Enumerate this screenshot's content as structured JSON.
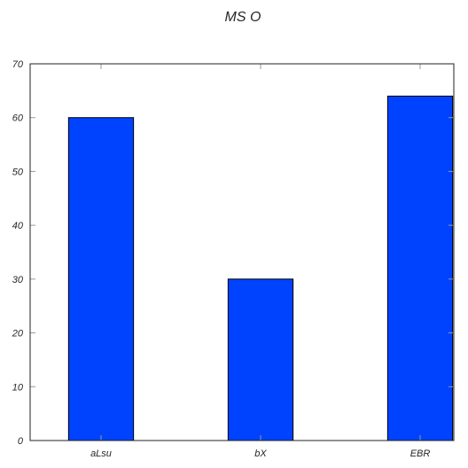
{
  "chart_data": {
    "type": "bar",
    "title": "MS O",
    "xlabel": "",
    "ylabel": "",
    "categories": [
      "aLsu",
      "bX",
      "EBR"
    ],
    "values": [
      60,
      30,
      64
    ],
    "ylim": [
      0,
      70
    ],
    "yticks": [
      0,
      10,
      20,
      30,
      40,
      50,
      60,
      70
    ],
    "grid": false,
    "colors": {
      "bar": "#0043ff",
      "edge": "#000000"
    }
  }
}
